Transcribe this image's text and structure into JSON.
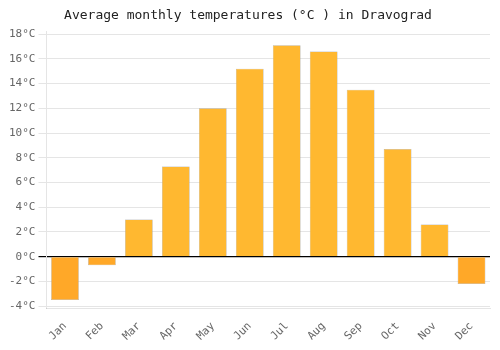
{
  "chart_data": {
    "type": "bar",
    "title": "Average monthly temperatures (°C ) in Dravograd",
    "categories": [
      "Jan",
      "Feb",
      "Mar",
      "Apr",
      "May",
      "Jun",
      "Jul",
      "Aug",
      "Sep",
      "Oct",
      "Nov",
      "Dec"
    ],
    "values": [
      -3.5,
      -0.7,
      3.0,
      7.3,
      12.0,
      15.2,
      17.1,
      16.6,
      13.5,
      8.7,
      2.6,
      -2.2
    ],
    "colors": [
      "#FFA828",
      "#FFA828",
      "#FFB830",
      "#FFB830",
      "#FFB830",
      "#FFB830",
      "#FFB830",
      "#FFB830",
      "#FFB830",
      "#FFB830",
      "#FFB830",
      "#FFA828"
    ],
    "ylim": [
      -4.2,
      18.2
    ],
    "yticks": [
      {
        "value": -4,
        "label": "-4°C"
      },
      {
        "value": -2,
        "label": "-2°C"
      },
      {
        "value": 0,
        "label": "0°C"
      },
      {
        "value": 2,
        "label": "2°C"
      },
      {
        "value": 4,
        "label": "4°C"
      },
      {
        "value": 6,
        "label": "6°C"
      },
      {
        "value": 8,
        "label": "8°C"
      },
      {
        "value": 10,
        "label": "10°C"
      },
      {
        "value": 12,
        "label": "12°C"
      },
      {
        "value": 14,
        "label": "14°C"
      },
      {
        "value": 16,
        "label": "16°C"
      },
      {
        "value": 18,
        "label": "18°C"
      }
    ],
    "grid": true
  }
}
